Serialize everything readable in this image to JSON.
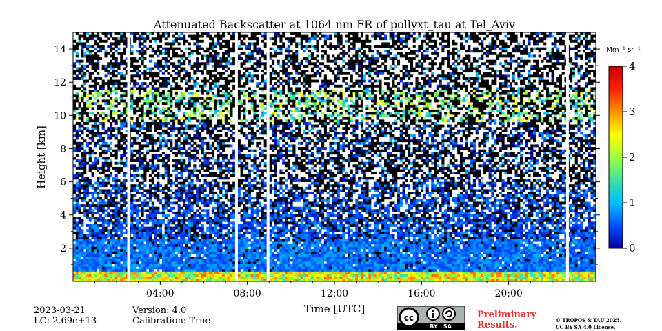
{
  "chart_data": {
    "type": "heatmap",
    "title": "Attenuated Backscatter at 1064 nm FR of pollyxt_tau at Tel_Aviv",
    "xlabel": "Time [UTC]",
    "ylabel": "Height [km]",
    "xlim": [
      0,
      24
    ],
    "ylim": [
      0,
      15
    ],
    "x_ticks": [
      {
        "value": 4,
        "label": "04:00"
      },
      {
        "value": 8,
        "label": "08:00"
      },
      {
        "value": 12,
        "label": "12:00"
      },
      {
        "value": 16,
        "label": "16:00"
      },
      {
        "value": 20,
        "label": "20:00"
      }
    ],
    "y_ticks": [
      {
        "value": 2,
        "label": "2"
      },
      {
        "value": 4,
        "label": "4"
      },
      {
        "value": 6,
        "label": "6"
      },
      {
        "value": 8,
        "label": "8"
      },
      {
        "value": 10,
        "label": "10"
      },
      {
        "value": 12,
        "label": "12"
      },
      {
        "value": 14,
        "label": "14"
      }
    ],
    "colorbar": {
      "unit_label": "Mm⁻¹ sr⁻¹",
      "range": [
        0,
        4
      ],
      "ticks": [
        {
          "value": 0,
          "label": "0"
        },
        {
          "value": 1,
          "label": "1"
        },
        {
          "value": 2,
          "label": "2"
        },
        {
          "value": 3,
          "label": "3"
        },
        {
          "value": 4,
          "label": "4"
        }
      ],
      "colormap": "jet",
      "colors": [
        "#0000a0",
        "#0050ff",
        "#00c0ff",
        "#40e0a0",
        "#9cff40",
        "#ffff00",
        "#ff9000",
        "#ff2000",
        "#c00000"
      ]
    },
    "data_gaps_utc": [
      2.55,
      7.5,
      8.95,
      22.7
    ],
    "layers": [
      {
        "name": "near-surface layer",
        "height_km": [
          0,
          0.5
        ],
        "value": 2.2
      },
      {
        "name": "boundary layer",
        "height_km": [
          0.5,
          2.5
        ],
        "value": 0.8
      },
      {
        "name": "aerosol layer",
        "height_km": [
          2.5,
          6
        ],
        "value": 0.4
      },
      {
        "name": "cirrus",
        "height_km": [
          9.5,
          11.5
        ],
        "value": 1.8
      }
    ]
  },
  "footer": {
    "date": "2023-03-21",
    "lc": "LC: 2.69e+13",
    "version": "Version: 4.0",
    "calibration": "Calibration: True",
    "license_badge_text": "BY   SA",
    "preliminary_line1": "Preliminary",
    "preliminary_line2": "Results.",
    "copyright_line1": "© TROPOS & TAU 2025.",
    "copyright_line2": "CC BY SA 4.0 License."
  }
}
